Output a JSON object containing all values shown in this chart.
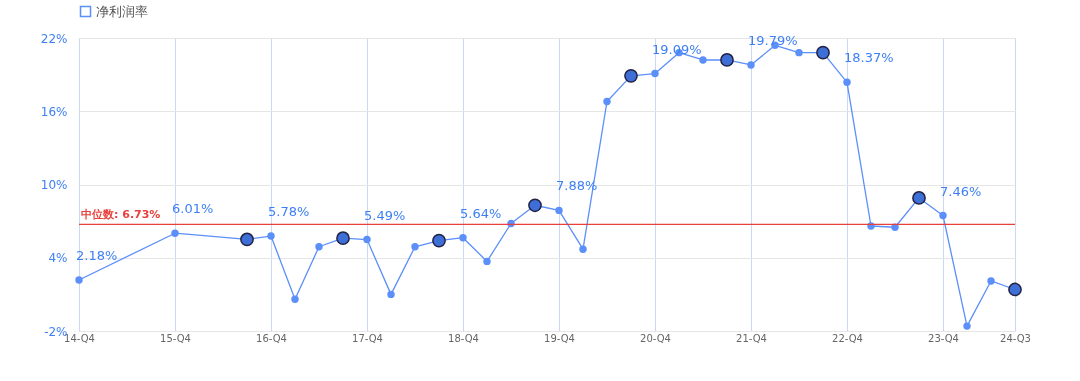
{
  "chart_data": {
    "type": "line",
    "categories": [
      "14-Q4",
      null,
      null,
      null,
      "15-Q4",
      null,
      null,
      null,
      "16-Q4",
      null,
      null,
      null,
      "17-Q4",
      null,
      null,
      null,
      "18-Q4",
      null,
      null,
      null,
      "19-Q4",
      null,
      null,
      null,
      "20-Q4",
      null,
      null,
      null,
      "21-Q4",
      null,
      null,
      null,
      "22-Q4",
      null,
      null,
      null,
      "23-Q4",
      null,
      null,
      "24-Q3"
    ],
    "series": [
      {
        "name": "净利润率",
        "color": "#5b8ff9",
        "values": [
          2.18,
          null,
          null,
          null,
          6.01,
          null,
          null,
          5.5,
          5.78,
          0.6,
          4.9,
          5.6,
          5.49,
          1.0,
          4.9,
          5.4,
          5.64,
          3.7,
          6.8,
          8.3,
          7.88,
          4.7,
          16.8,
          18.9,
          19.09,
          20.8,
          20.2,
          20.2,
          19.79,
          21.4,
          20.8,
          20.8,
          18.37,
          6.6,
          6.5,
          8.9,
          7.46,
          -1.6,
          2.1,
          1.4
        ],
        "value_labels": [
          "2.18%",
          null,
          null,
          null,
          "6.01%",
          null,
          null,
          null,
          "5.78%",
          null,
          null,
          null,
          "5.49%",
          null,
          null,
          null,
          "5.64%",
          null,
          null,
          null,
          "7.88%",
          null,
          null,
          null,
          "19.09%",
          null,
          null,
          null,
          "19.79%",
          null,
          null,
          null,
          "18.37%",
          null,
          null,
          null,
          "7.46%",
          null,
          null,
          null
        ]
      },
      {
        "type": "scatter",
        "color": "#3d6fd6",
        "values": [
          null,
          null,
          null,
          null,
          null,
          null,
          null,
          5.5,
          null,
          null,
          null,
          5.6,
          null,
          null,
          null,
          5.4,
          null,
          null,
          null,
          8.3,
          null,
          null,
          null,
          18.9,
          null,
          null,
          null,
          20.2,
          null,
          null,
          null,
          20.8,
          null,
          null,
          null,
          8.9,
          null,
          null,
          null,
          1.4
        ]
      }
    ],
    "ylim": [
      -2,
      22
    ],
    "yticks": [
      {
        "value": -2,
        "label": "-2%"
      },
      {
        "value": 4,
        "label": "4%"
      },
      {
        "value": 10,
        "label": "10%"
      },
      {
        "value": 16,
        "label": "16%"
      },
      {
        "value": 22,
        "label": "22%"
      }
    ],
    "ref_lines": [
      {
        "axis": "y",
        "value": 6.73,
        "label": "中位数: 6.73%",
        "color": "#e8413c"
      }
    ],
    "grid": true,
    "legend": "top",
    "marker": "circle",
    "line_style": "solid"
  }
}
